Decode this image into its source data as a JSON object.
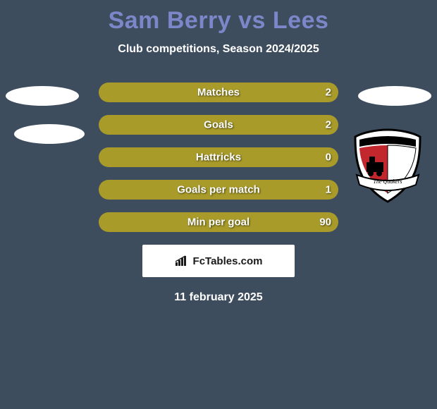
{
  "background_color": "#3e4d5e",
  "title_color": "#7b87c9",
  "text_color": "#ffffff",
  "bar_color": "#a89b2a",
  "title": "Sam Berry vs Lees",
  "subtitle": "Club competitions, Season 2024/2025",
  "stats": [
    {
      "label": "Matches",
      "value_right": "2",
      "bar_pct": 100
    },
    {
      "label": "Goals",
      "value_right": "2",
      "bar_pct": 100
    },
    {
      "label": "Hattricks",
      "value_right": "0",
      "bar_pct": 100
    },
    {
      "label": "Goals per match",
      "value_right": "1",
      "bar_pct": 100
    },
    {
      "label": "Min per goal",
      "value_right": "90",
      "bar_pct": 100
    }
  ],
  "brand": "FcTables.com",
  "date": "11 february 2025",
  "right_badge": {
    "banner_text": "The Quakers",
    "shield_border": "#000000",
    "shield_fill": "#ffffff",
    "shield_red": "#c1272d",
    "shield_black": "#000000"
  }
}
